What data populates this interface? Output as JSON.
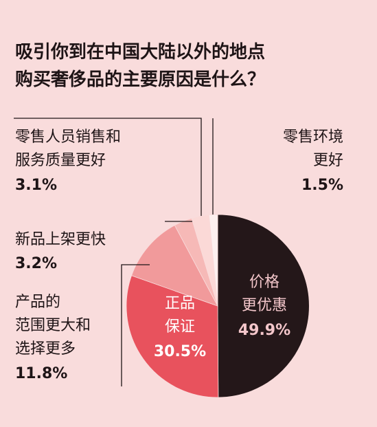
{
  "chart_data": {
    "type": "pie",
    "title_lines": [
      "吸引你到在中国大陆以外的地点",
      "购买奢侈品的主要原因是什么？"
    ],
    "slices": [
      {
        "label_lines": [
          "价格",
          "更优惠"
        ],
        "value": 49.9,
        "value_text": "49.9%",
        "color": "#241719"
      },
      {
        "label_lines": [
          "正品",
          "保证"
        ],
        "value": 30.5,
        "value_text": "30.5%",
        "color": "#e8525d"
      },
      {
        "label_lines": [
          "产品的",
          "范围更大和",
          "选择更多"
        ],
        "value": 11.8,
        "value_text": "11.8%",
        "color": "#f19a9b"
      },
      {
        "label_lines": [
          "新品上架更快"
        ],
        "value": 3.2,
        "value_text": "3.2%",
        "color": "#f6b9b7"
      },
      {
        "label_lines": [
          "零售人员销售和",
          "服务质量更好"
        ],
        "value": 3.1,
        "value_text": "3.1%",
        "color": "#fbd9d7"
      },
      {
        "label_lines": [
          "零售环境",
          "更好"
        ],
        "value": 1.5,
        "value_text": "1.5%",
        "color": "#fdf0ef"
      }
    ],
    "legend": "none",
    "grid": false
  }
}
